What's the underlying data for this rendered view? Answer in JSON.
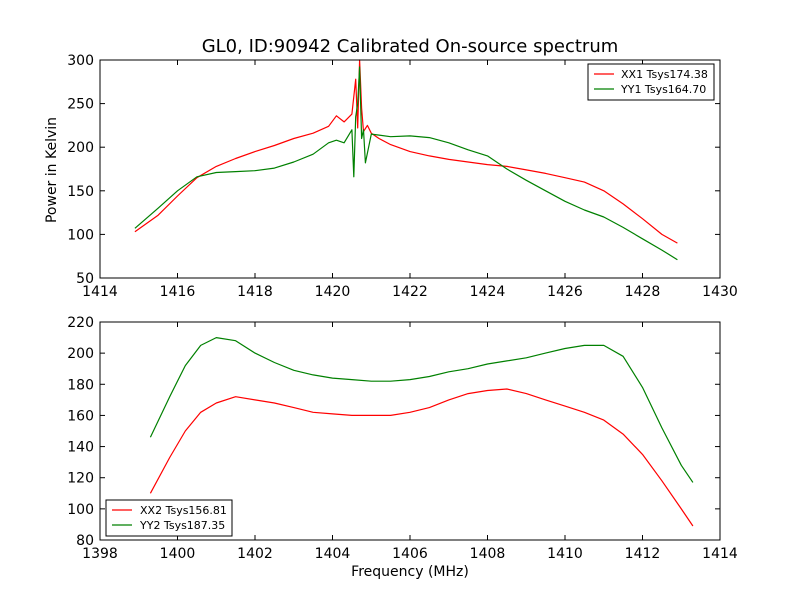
{
  "chart_data": [
    {
      "type": "line",
      "title": "GL0, ID:90942 Calibrated On-source spectrum",
      "xlabel": "",
      "ylabel": "Power in Kelvin",
      "xlim": [
        1414,
        1430
      ],
      "ylim": [
        50,
        300
      ],
      "xticks": [
        1414,
        1416,
        1418,
        1420,
        1422,
        1424,
        1426,
        1428,
        1430
      ],
      "yticks": [
        50,
        100,
        150,
        200,
        250,
        300
      ],
      "legend_position": "top-right",
      "series": [
        {
          "name": "XX1 Tsys174.38",
          "color": "#ff0000",
          "x": [
            1414.9,
            1415.5,
            1416.0,
            1416.5,
            1417.0,
            1417.5,
            1418.0,
            1418.5,
            1419.0,
            1419.5,
            1419.9,
            1420.1,
            1420.3,
            1420.5,
            1420.6,
            1420.65,
            1420.7,
            1420.75,
            1420.8,
            1420.9,
            1421.0,
            1421.2,
            1421.5,
            1422.0,
            1422.5,
            1423.0,
            1423.5,
            1424.0,
            1424.5,
            1425.0,
            1425.5,
            1426.0,
            1426.5,
            1427.0,
            1427.5,
            1428.0,
            1428.5,
            1428.9
          ],
          "y": [
            103,
            122,
            144,
            165,
            178,
            187,
            195,
            202,
            210,
            216,
            224,
            236,
            229,
            238,
            278,
            222,
            300,
            245,
            218,
            225,
            216,
            210,
            203,
            195,
            190,
            186,
            183,
            180,
            178,
            174,
            170,
            165,
            160,
            150,
            135,
            118,
            100,
            90
          ]
        },
        {
          "name": "YY1 Tsys164.70",
          "color": "#008000",
          "x": [
            1414.9,
            1415.5,
            1416.0,
            1416.5,
            1417.0,
            1417.5,
            1418.0,
            1418.5,
            1419.0,
            1419.5,
            1419.9,
            1420.1,
            1420.3,
            1420.5,
            1420.55,
            1420.6,
            1420.65,
            1420.7,
            1420.75,
            1420.8,
            1420.85,
            1421.0,
            1421.5,
            1422.0,
            1422.5,
            1423.0,
            1423.5,
            1424.0,
            1424.5,
            1425.0,
            1425.5,
            1426.0,
            1426.5,
            1427.0,
            1427.5,
            1428.0,
            1428.5,
            1428.9
          ],
          "y": [
            107,
            130,
            150,
            166,
            171,
            172,
            173,
            176,
            183,
            192,
            205,
            208,
            205,
            220,
            166,
            235,
            250,
            292,
            210,
            220,
            182,
            215,
            212,
            213,
            211,
            205,
            197,
            190,
            175,
            162,
            150,
            138,
            128,
            120,
            108,
            95,
            82,
            71
          ]
        }
      ]
    },
    {
      "type": "line",
      "title": "",
      "xlabel": "Frequency (MHz)",
      "ylabel": "",
      "xlim": [
        1398,
        1414
      ],
      "ylim": [
        80,
        220
      ],
      "xticks": [
        1398,
        1400,
        1402,
        1404,
        1406,
        1408,
        1410,
        1412,
        1414
      ],
      "yticks": [
        80,
        100,
        120,
        140,
        160,
        180,
        200,
        220
      ],
      "legend_position": "bottom-left",
      "series": [
        {
          "name": "XX2 Tsys156.81",
          "color": "#ff0000",
          "x": [
            1399.3,
            1399.8,
            1400.2,
            1400.6,
            1401.0,
            1401.5,
            1402.0,
            1402.5,
            1403.0,
            1403.5,
            1404.0,
            1404.5,
            1405.0,
            1405.5,
            1406.0,
            1406.5,
            1407.0,
            1407.5,
            1408.0,
            1408.5,
            1409.0,
            1409.5,
            1410.0,
            1410.5,
            1411.0,
            1411.5,
            1412.0,
            1412.5,
            1413.0,
            1413.3
          ],
          "y": [
            110,
            133,
            150,
            162,
            168,
            172,
            170,
            168,
            165,
            162,
            161,
            160,
            160,
            160,
            162,
            165,
            170,
            174,
            176,
            177,
            174,
            170,
            166,
            162,
            157,
            148,
            135,
            118,
            100,
            89
          ]
        },
        {
          "name": "YY2 Tsys187.35",
          "color": "#008000",
          "x": [
            1399.3,
            1399.8,
            1400.2,
            1400.6,
            1401.0,
            1401.5,
            1402.0,
            1402.5,
            1403.0,
            1403.5,
            1404.0,
            1404.5,
            1405.0,
            1405.5,
            1406.0,
            1406.5,
            1407.0,
            1407.5,
            1408.0,
            1408.5,
            1409.0,
            1409.5,
            1410.0,
            1410.5,
            1411.0,
            1411.5,
            1412.0,
            1412.5,
            1413.0,
            1413.3
          ],
          "y": [
            146,
            172,
            192,
            205,
            210,
            208,
            200,
            194,
            189,
            186,
            184,
            183,
            182,
            182,
            183,
            185,
            188,
            190,
            193,
            195,
            197,
            200,
            203,
            205,
            205,
            198,
            178,
            152,
            128,
            117
          ]
        }
      ]
    }
  ]
}
